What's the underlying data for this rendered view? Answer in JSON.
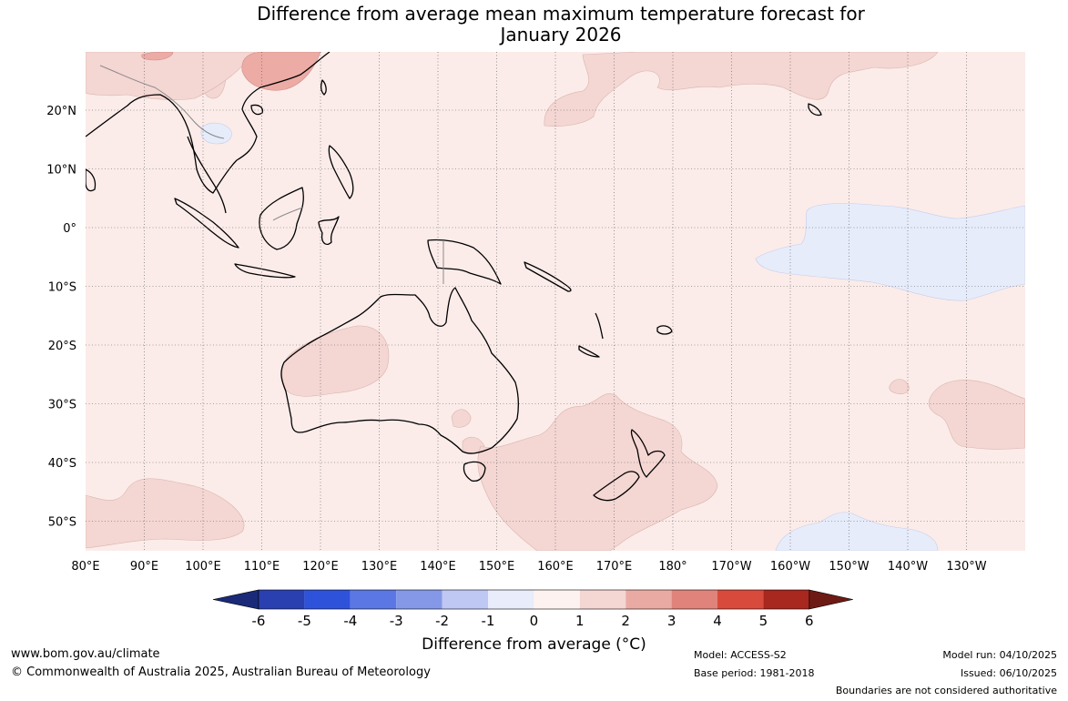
{
  "title": {
    "line1": "Difference from average mean maximum temperature forecast for",
    "line2": "January 2026"
  },
  "map": {
    "lat_labels": [
      "20°N",
      "10°N",
      "0°",
      "10°S",
      "20°S",
      "30°S",
      "40°S",
      "50°S"
    ],
    "lon_labels": [
      "80°E",
      "90°E",
      "100°E",
      "110°E",
      "120°E",
      "130°E",
      "140°E",
      "150°E",
      "160°E",
      "170°E",
      "180°",
      "170°W",
      "160°W",
      "150°W",
      "140°W",
      "130°W"
    ],
    "colors": {
      "background": "#fbece9",
      "band_1_2": "#f4d6d3",
      "band_2_3": "#ecaba5",
      "band_minus1_0": "#e7ecfb",
      "coast": "#000000",
      "border": "#8a8a8a",
      "grid": "#555555"
    }
  },
  "colorbar": {
    "ticks": [
      "-6",
      "-5",
      "-4",
      "-3",
      "-2",
      "-1",
      "0",
      "1",
      "2",
      "3",
      "4",
      "5",
      "6"
    ],
    "colors": [
      "#1a2a78",
      "#2a3fb0",
      "#2f52da",
      "#5b77e3",
      "#8598e7",
      "#bec8f2",
      "#e8ecfb",
      "#fdf2ef",
      "#f4d6d3",
      "#eaaaa4",
      "#e0837a",
      "#d84a3c",
      "#a8271f",
      "#6e1a14"
    ],
    "label": "Difference from average (°C)"
  },
  "footer": {
    "url": "www.bom.gov.au/climate",
    "copyright": "© Commonwealth of Australia 2025, Australian Bureau of Meteorology",
    "model": "Model: ACCESS-S2",
    "base_period": "Base period: 1981-2018",
    "model_run": "Model run: 04/10/2025",
    "issued": "Issued: 06/10/2025",
    "disclaimer": "Boundaries are not considered authoritative"
  }
}
